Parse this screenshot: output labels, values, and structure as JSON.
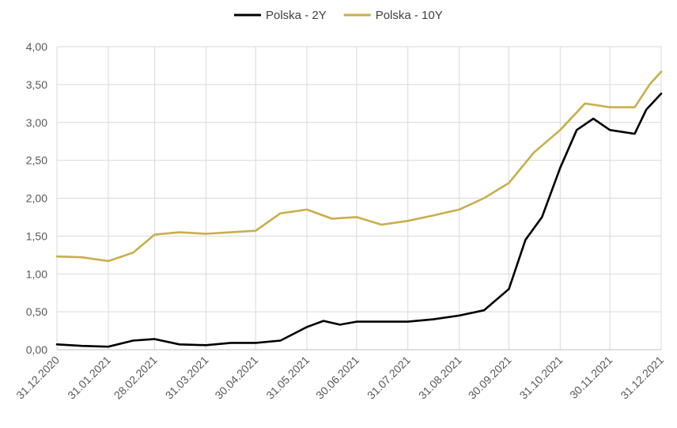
{
  "chart_data": {
    "type": "line",
    "title": "",
    "xlabel": "",
    "ylabel": "",
    "ylim": [
      0,
      4
    ],
    "y_ticks": [
      "0,00",
      "0,50",
      "1,00",
      "1,50",
      "2,00",
      "2,50",
      "3,00",
      "3,50",
      "4,00"
    ],
    "x_ticks": [
      "31.12.2020",
      "31.01.2021",
      "28.02.2021",
      "31.03.2021",
      "30.04.2021",
      "31.05.2021",
      "30.06.2021",
      "31.07.2021",
      "31.08.2021",
      "30.09.2021",
      "31.10.2021",
      "30.11.2021",
      "31.12.2021"
    ],
    "grid": "vertical-and-horizontal",
    "legend_position": "top-center",
    "series": [
      {
        "name": "Polska - 2Y",
        "color": "#000000",
        "points": [
          [
            "31.12.2020",
            0.07
          ],
          [
            "15.01.2021",
            0.05
          ],
          [
            "31.01.2021",
            0.04
          ],
          [
            "15.02.2021",
            0.12
          ],
          [
            "28.02.2021",
            0.14
          ],
          [
            "15.03.2021",
            0.07
          ],
          [
            "31.03.2021",
            0.06
          ],
          [
            "15.04.2021",
            0.09
          ],
          [
            "30.04.2021",
            0.09
          ],
          [
            "15.05.2021",
            0.12
          ],
          [
            "31.05.2021",
            0.3
          ],
          [
            "10.06.2021",
            0.38
          ],
          [
            "20.06.2021",
            0.33
          ],
          [
            "30.06.2021",
            0.37
          ],
          [
            "15.07.2021",
            0.37
          ],
          [
            "31.07.2021",
            0.37
          ],
          [
            "15.08.2021",
            0.4
          ],
          [
            "31.08.2021",
            0.45
          ],
          [
            "15.09.2021",
            0.52
          ],
          [
            "30.09.2021",
            0.8
          ],
          [
            "10.10.2021",
            1.45
          ],
          [
            "20.10.2021",
            1.75
          ],
          [
            "31.10.2021",
            2.4
          ],
          [
            "10.11.2021",
            2.9
          ],
          [
            "20.11.2021",
            3.05
          ],
          [
            "30.11.2021",
            2.9
          ],
          [
            "15.12.2021",
            2.85
          ],
          [
            "22.12.2021",
            3.17
          ],
          [
            "31.12.2021",
            3.38
          ]
        ]
      },
      {
        "name": "Polska - 10Y",
        "color": "#C9AE4C",
        "points": [
          [
            "31.12.2020",
            1.23
          ],
          [
            "15.01.2021",
            1.22
          ],
          [
            "31.01.2021",
            1.17
          ],
          [
            "15.02.2021",
            1.28
          ],
          [
            "28.02.2021",
            1.52
          ],
          [
            "15.03.2021",
            1.55
          ],
          [
            "31.03.2021",
            1.53
          ],
          [
            "15.04.2021",
            1.55
          ],
          [
            "30.04.2021",
            1.57
          ],
          [
            "15.05.2021",
            1.8
          ],
          [
            "31.05.2021",
            1.85
          ],
          [
            "15.06.2021",
            1.73
          ],
          [
            "30.06.2021",
            1.75
          ],
          [
            "15.07.2021",
            1.65
          ],
          [
            "31.07.2021",
            1.7
          ],
          [
            "15.08.2021",
            1.77
          ],
          [
            "31.08.2021",
            1.85
          ],
          [
            "15.09.2021",
            2.0
          ],
          [
            "30.09.2021",
            2.2
          ],
          [
            "15.10.2021",
            2.6
          ],
          [
            "31.10.2021",
            2.9
          ],
          [
            "15.11.2021",
            3.25
          ],
          [
            "30.11.2021",
            3.2
          ],
          [
            "15.12.2021",
            3.2
          ],
          [
            "24.12.2021",
            3.5
          ],
          [
            "31.12.2021",
            3.67
          ]
        ]
      }
    ]
  }
}
